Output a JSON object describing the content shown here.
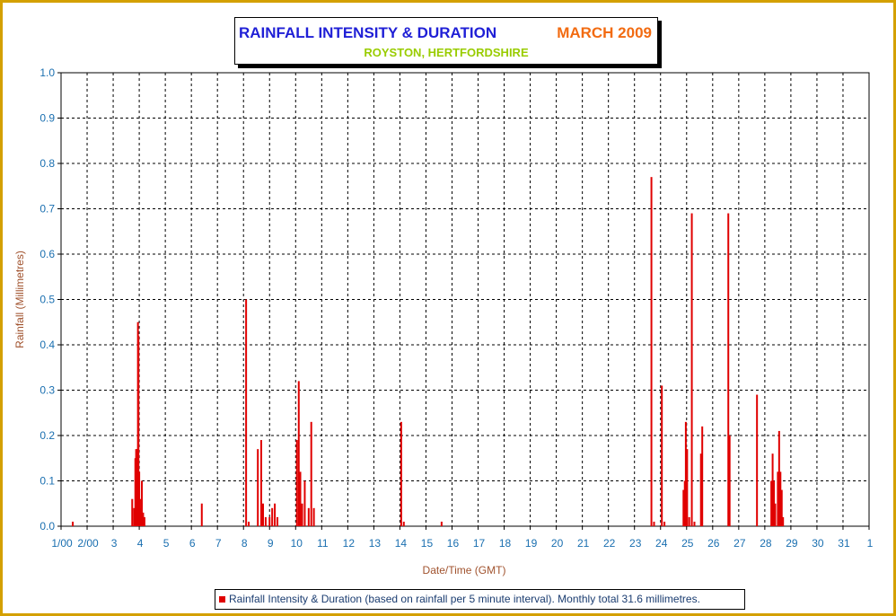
{
  "chart_data": {
    "type": "bar",
    "title": "RAINFALL INTENSITY & DURATION",
    "title_month": "MARCH 2009",
    "subtitle": "ROYSTON, HERTFORDSHIRE",
    "xlabel": "Date/Time (GMT)",
    "ylabel": "Rainfall (Millimetres)",
    "ylim": [
      0,
      1.0
    ],
    "xlim": [
      1,
      32
    ],
    "yticks": [
      "0.0",
      "0.1",
      "0.2",
      "0.3",
      "0.4",
      "0.5",
      "0.6",
      "0.7",
      "0.8",
      "0.9",
      "1.0"
    ],
    "xticks": [
      "1/00",
      "2/00",
      "3",
      "4",
      "5",
      "6",
      "7",
      "8",
      "9",
      "10",
      "11",
      "12",
      "13",
      "14",
      "15",
      "16",
      "17",
      "18",
      "19",
      "20",
      "21",
      "22",
      "23",
      "24",
      "25",
      "26",
      "27",
      "28",
      "29",
      "30",
      "31",
      "1"
    ],
    "grid": true,
    "legend_position": "bottom",
    "series": [
      {
        "name": "Rainfall Intensity & Duration (based on rainfall per 5 minute interval). Monthly total 31.6 millimetres.",
        "color": "#e00000",
        "points": [
          [
            1.45,
            0.01
          ],
          [
            3.73,
            0.06
          ],
          [
            3.8,
            0.04
          ],
          [
            3.85,
            0.15
          ],
          [
            3.88,
            0.17
          ],
          [
            3.92,
            0.17
          ],
          [
            3.95,
            0.45
          ],
          [
            3.97,
            0.42
          ],
          [
            4.0,
            0.12
          ],
          [
            4.03,
            0.06
          ],
          [
            4.05,
            0.04
          ],
          [
            4.1,
            0.1
          ],
          [
            4.15,
            0.03
          ],
          [
            4.2,
            0.02
          ],
          [
            6.4,
            0.05
          ],
          [
            8.1,
            0.5
          ],
          [
            8.2,
            0.01
          ],
          [
            8.55,
            0.17
          ],
          [
            8.68,
            0.19
          ],
          [
            8.75,
            0.05
          ],
          [
            8.85,
            0.02
          ],
          [
            9.0,
            0.02
          ],
          [
            9.1,
            0.04
          ],
          [
            9.2,
            0.05
          ],
          [
            9.3,
            0.02
          ],
          [
            10.05,
            0.19
          ],
          [
            10.12,
            0.32
          ],
          [
            10.18,
            0.12
          ],
          [
            10.25,
            0.05
          ],
          [
            10.35,
            0.1
          ],
          [
            10.5,
            0.04
          ],
          [
            10.6,
            0.23
          ],
          [
            10.7,
            0.04
          ],
          [
            14.05,
            0.23
          ],
          [
            14.15,
            0.01
          ],
          [
            15.6,
            0.01
          ],
          [
            23.65,
            0.77
          ],
          [
            23.75,
            0.01
          ],
          [
            24.05,
            0.31
          ],
          [
            24.15,
            0.01
          ],
          [
            24.88,
            0.08
          ],
          [
            24.93,
            0.1
          ],
          [
            24.97,
            0.23
          ],
          [
            25.02,
            0.17
          ],
          [
            25.1,
            0.02
          ],
          [
            25.2,
            0.69
          ],
          [
            25.3,
            0.01
          ],
          [
            25.55,
            0.16
          ],
          [
            25.6,
            0.22
          ],
          [
            26.6,
            0.69
          ],
          [
            26.65,
            0.2
          ],
          [
            27.7,
            0.29
          ],
          [
            28.25,
            0.1
          ],
          [
            28.3,
            0.16
          ],
          [
            28.35,
            0.1
          ],
          [
            28.4,
            0.05
          ],
          [
            28.5,
            0.12
          ],
          [
            28.55,
            0.21
          ],
          [
            28.6,
            0.12
          ],
          [
            28.65,
            0.08
          ],
          [
            28.7,
            0.02
          ]
        ]
      }
    ]
  },
  "legend": {
    "text": "Rainfall Intensity & Duration (based on rainfall per 5 minute interval). Monthly total 31.6 millimetres."
  },
  "colors": {
    "frame": "#d4a000",
    "title": "#1f1fd6",
    "month": "#f26b11",
    "subtitle": "#99cc00",
    "bar": "#e00000",
    "axis_text": "#1a6fb0",
    "axis_label": "#a0522d"
  }
}
